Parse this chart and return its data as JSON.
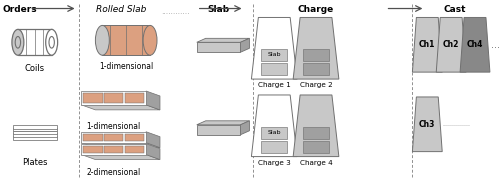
{
  "bg_color": "#ffffff",
  "coil_label": "Coils",
  "plates_label": "Plates",
  "dim1_label_coil": "1-dimensional",
  "dim1_label_plate": "1-dimensional",
  "dim2_label_plate": "2-dimensional",
  "slab_text": "Slab",
  "cast_labels": [
    "Ch1",
    "Ch2",
    "Ch4",
    "Ch3"
  ],
  "orange_color": "#DCA080",
  "orange_edge": "#B07050",
  "gray_light": "#C8C8C8",
  "gray_med": "#A0A0A0",
  "gray_dark": "#707070",
  "gray_darker": "#606060",
  "gray_box_dark": "#888888",
  "dash_color": "#909090",
  "arrow_color": "#505050"
}
